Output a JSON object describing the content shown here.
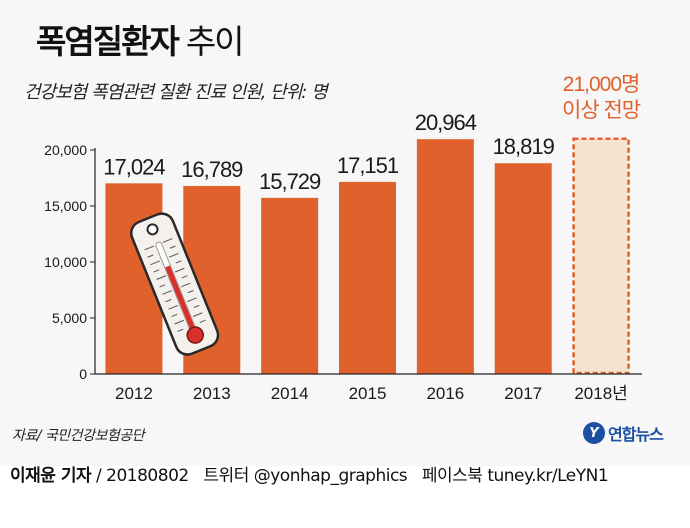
{
  "header": {
    "title_bold": "폭염질환자",
    "title_light": "추이",
    "subtitle": "건강보험 폭염관련 질환 진료 인원, 단위: 명"
  },
  "chart_data": {
    "type": "bar",
    "title": "폭염질환자 추이",
    "subtitle": "건강보험 폭염관련 질환 진료 인원, 단위: 명",
    "categories": [
      "2012",
      "2013",
      "2014",
      "2015",
      "2016",
      "2017",
      "2018년"
    ],
    "values": [
      17024,
      16789,
      15729,
      17151,
      20964,
      18819,
      21000
    ],
    "value_labels": [
      "17,024",
      "16,789",
      "15,729",
      "17,151",
      "20,964",
      "18,819",
      null
    ],
    "projected": [
      false,
      false,
      false,
      false,
      false,
      false,
      true
    ],
    "projection_note": [
      "21,000명",
      "이상 전망"
    ],
    "ylim": [
      0,
      20000
    ],
    "yticks": [
      0,
      5000,
      10000,
      15000,
      20000
    ],
    "ytick_labels": [
      "0",
      "5,000",
      "10,000",
      "15,000",
      "20,000"
    ],
    "xlabel": "",
    "ylabel": "",
    "grid": false,
    "colors": {
      "bar": "#e0612b",
      "projected_fill": "#f7e3d2",
      "projected_border": "#e0612b",
      "projected_text": "#e0612b",
      "axis": "#222222",
      "label": "#1a1a1a"
    }
  },
  "source": "자료/ 국민건강보험공단",
  "brand": {
    "mark": "Y",
    "name": "연합뉴스",
    "icon": "yonhap-logo-icon"
  },
  "illustration": {
    "icon": "thermometer-icon"
  },
  "footer": {
    "reporter": "이재윤 기자",
    "separator": "/",
    "date": "20180802",
    "twitter": "트위터 @yonhap_graphics",
    "facebook": "페이스북 tuney.kr/LeYN1"
  }
}
